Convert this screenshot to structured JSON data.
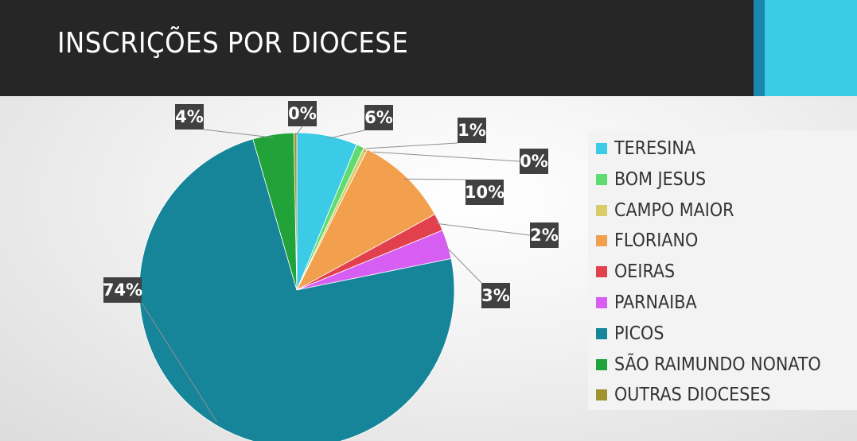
{
  "header": {
    "title": "INSCRIÇÕES POR DIOCESE"
  },
  "chart_data": {
    "type": "pie",
    "categories": [
      "TERESINA",
      "BOM JESUS",
      "CAMPO MAIOR",
      "FLORIANO",
      "OEIRAS",
      "PARNAIBA",
      "PICOS",
      "SÃO RAIMUNDO NONATO",
      "OUTRAS DIOCESES"
    ],
    "values": [
      6.2,
      0.8,
      0.4,
      9.6,
      1.8,
      3.0,
      73.7,
      4.2,
      0.3
    ],
    "data_labels": [
      "6%",
      "1%",
      "0%",
      "10%",
      "2%",
      "3%",
      "74%",
      "4%",
      "0%"
    ],
    "colors": [
      "#3ccbe6",
      "#5edc72",
      "#d8cd6a",
      "#f2a04e",
      "#e2404c",
      "#d75ef3",
      "#168499",
      "#22a33a",
      "#9e9430"
    ],
    "legend_position": "right",
    "start": "top",
    "direction": "clockwise"
  }
}
